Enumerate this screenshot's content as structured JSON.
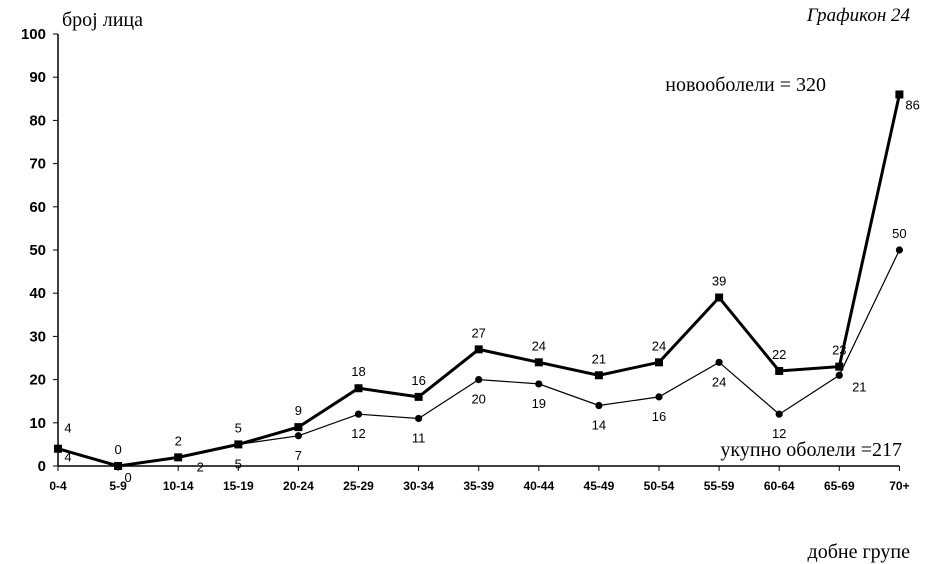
{
  "chart_data": {
    "type": "line",
    "title": "Графикон 24",
    "xlabel": "добне групе",
    "ylabel": "број лица",
    "ylim": [
      0,
      100
    ],
    "yticks": [
      0,
      10,
      20,
      30,
      40,
      50,
      60,
      70,
      80,
      90,
      100
    ],
    "categories": [
      "0-4",
      "5-9",
      "10-14",
      "15-19",
      "20-24",
      "25-29",
      "30-34",
      "35-39",
      "40-44",
      "45-49",
      "50-54",
      "55-59",
      "60-64",
      "65-69",
      "70+"
    ],
    "series": [
      {
        "name": "новооболели = 320",
        "marker": "square",
        "line": "thick",
        "values": [
          4,
          0,
          2,
          5,
          9,
          18,
          16,
          27,
          24,
          21,
          24,
          39,
          22,
          23,
          86
        ],
        "labels": [
          "4",
          "0",
          "2",
          "5",
          "9",
          "18",
          "16",
          "27",
          "24",
          "21",
          "24",
          "39",
          "22",
          "23",
          "86"
        ]
      },
      {
        "name": "укупно оболели =217",
        "marker": "circle",
        "line": "thin",
        "values": [
          4,
          0,
          2,
          5,
          7,
          12,
          11,
          20,
          19,
          14,
          16,
          24,
          12,
          21,
          50
        ],
        "labels": [
          "4",
          "0",
          "2",
          "5",
          "7",
          "12",
          "11",
          "20",
          "19",
          "14",
          "16",
          "24",
          "12",
          "21",
          "50"
        ]
      }
    ]
  }
}
